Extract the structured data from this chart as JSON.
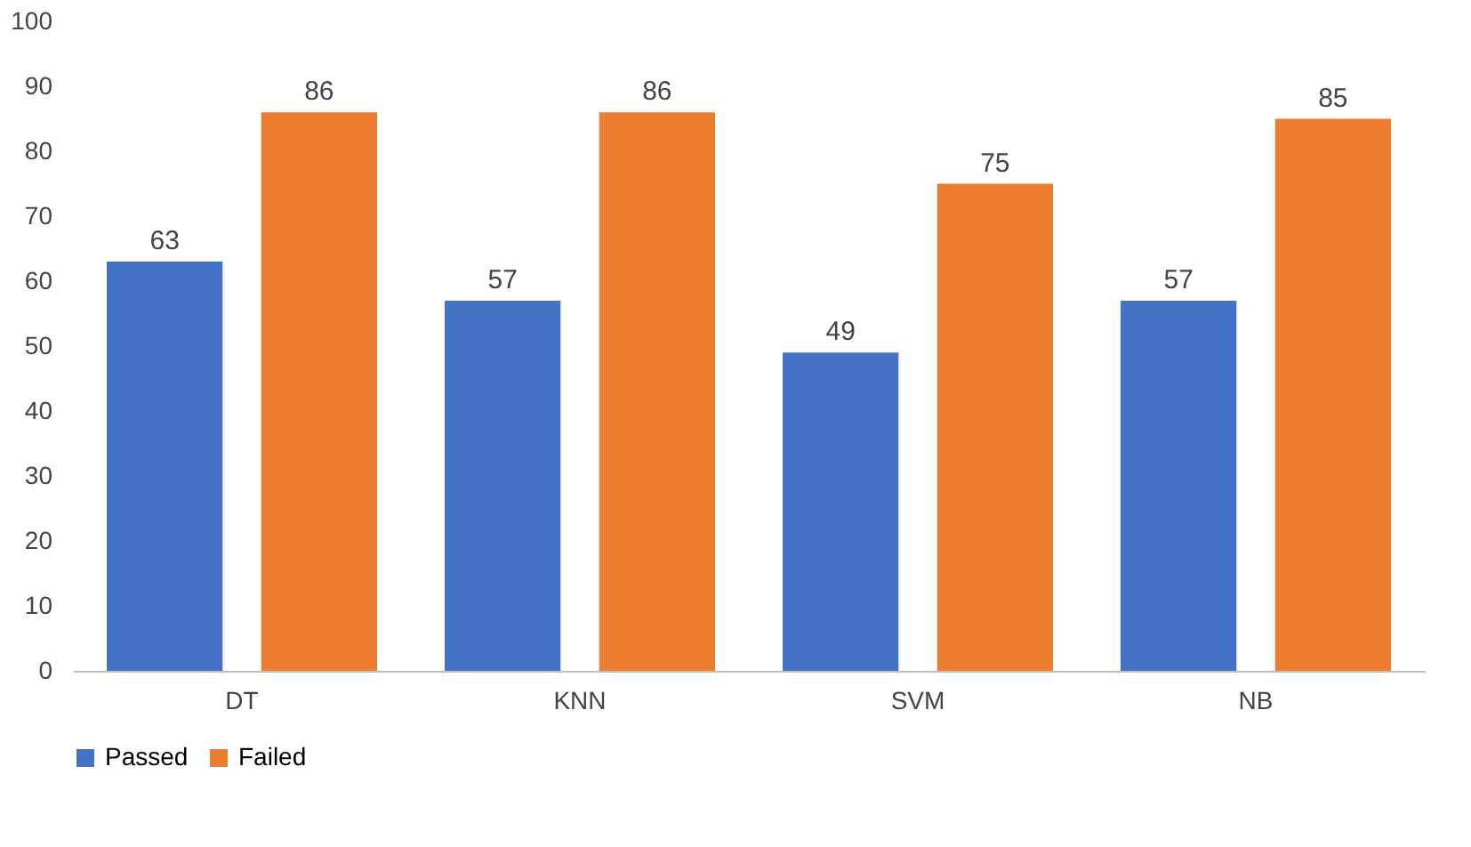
{
  "chart_data": {
    "type": "bar",
    "categories": [
      "DT",
      "KNN",
      "SVM",
      "NB"
    ],
    "series": [
      {
        "name": "Passed",
        "color": "#4472c4",
        "values": [
          63,
          57,
          49,
          57
        ]
      },
      {
        "name": "Failed",
        "color": "#ed7d31",
        "values": [
          86,
          86,
          75,
          85
        ]
      }
    ],
    "ylim": [
      0,
      100
    ],
    "yticks": [
      0,
      10,
      20,
      30,
      40,
      50,
      60,
      70,
      80,
      90,
      100
    ],
    "grid": false,
    "legend": "bottom",
    "data_labels": true
  }
}
